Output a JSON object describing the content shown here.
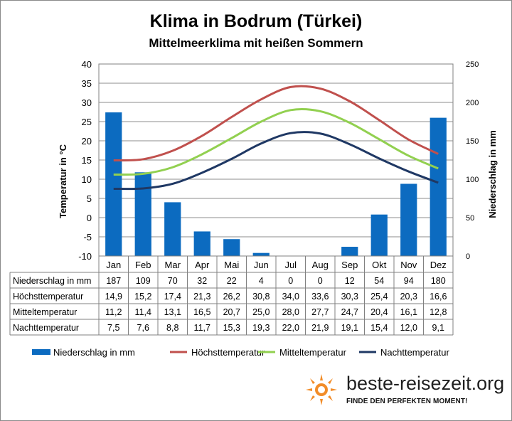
{
  "chart_data": {
    "type": "bar",
    "title": "Klima in Bodrum (Türkei)",
    "subtitle": "Mittelmeerklima mit heißen Sommern",
    "categories": [
      "Jan",
      "Feb",
      "Mar",
      "Apr",
      "Mai",
      "Jun",
      "Jul",
      "Aug",
      "Sep",
      "Okt",
      "Nov",
      "Dez"
    ],
    "ylabel": "Temperatur in °C",
    "y2label": "Niederschlag in mm",
    "ylim": [
      -10,
      40
    ],
    "y2lim": [
      0,
      250
    ],
    "yticks": [
      "-10",
      "-5",
      "0",
      "5",
      "10",
      "15",
      "20",
      "25",
      "30",
      "35",
      "40"
    ],
    "y2ticks": [
      "0",
      "50",
      "100",
      "150",
      "200",
      "250"
    ],
    "grid": true,
    "legend_position": "bottom",
    "series": [
      {
        "name": "Niederschlag in mm",
        "type": "bar",
        "axis": "right",
        "color": "#0c6bc0",
        "values": [
          187,
          109,
          70,
          32,
          22,
          4,
          0,
          0,
          12,
          54,
          94,
          180
        ],
        "labels": [
          "187",
          "109",
          "70",
          "32",
          "22",
          "4",
          "0",
          "0",
          "12",
          "54",
          "94",
          "180"
        ]
      },
      {
        "name": "Höchsttemperatur",
        "type": "line",
        "axis": "left",
        "color": "#c0504d",
        "values": [
          14.9,
          15.2,
          17.4,
          21.3,
          26.2,
          30.8,
          34.0,
          33.6,
          30.3,
          25.4,
          20.3,
          16.6
        ],
        "labels": [
          "14,9",
          "15,2",
          "17,4",
          "21,3",
          "26,2",
          "30,8",
          "34,0",
          "33,6",
          "30,3",
          "25,4",
          "20,3",
          "16,6"
        ]
      },
      {
        "name": "Mitteltemperatur",
        "type": "line",
        "axis": "left",
        "color": "#92d050",
        "values": [
          11.2,
          11.4,
          13.1,
          16.5,
          20.7,
          25.0,
          28.0,
          27.7,
          24.7,
          20.4,
          16.1,
          12.8
        ],
        "labels": [
          "11,2",
          "11,4",
          "13,1",
          "16,5",
          "20,7",
          "25,0",
          "28,0",
          "27,7",
          "24,7",
          "20,4",
          "16,1",
          "12,8"
        ]
      },
      {
        "name": "Nachttemperatur",
        "type": "line",
        "axis": "left",
        "color": "#1f3864",
        "values": [
          7.5,
          7.6,
          8.8,
          11.7,
          15.3,
          19.3,
          22.0,
          21.9,
          19.1,
          15.4,
          12.0,
          9.1
        ],
        "labels": [
          "7,5",
          "7,6",
          "8,8",
          "11,7",
          "15,3",
          "19,3",
          "22,0",
          "21,9",
          "19,1",
          "15,4",
          "12,0",
          "9,1"
        ]
      }
    ]
  },
  "branding": {
    "name": "beste-reisezeit.org",
    "tagline": "FINDE DEN PERFEKTEN MOMENT!",
    "accent_color": "#f28c28",
    "icon": "sun-icon"
  }
}
